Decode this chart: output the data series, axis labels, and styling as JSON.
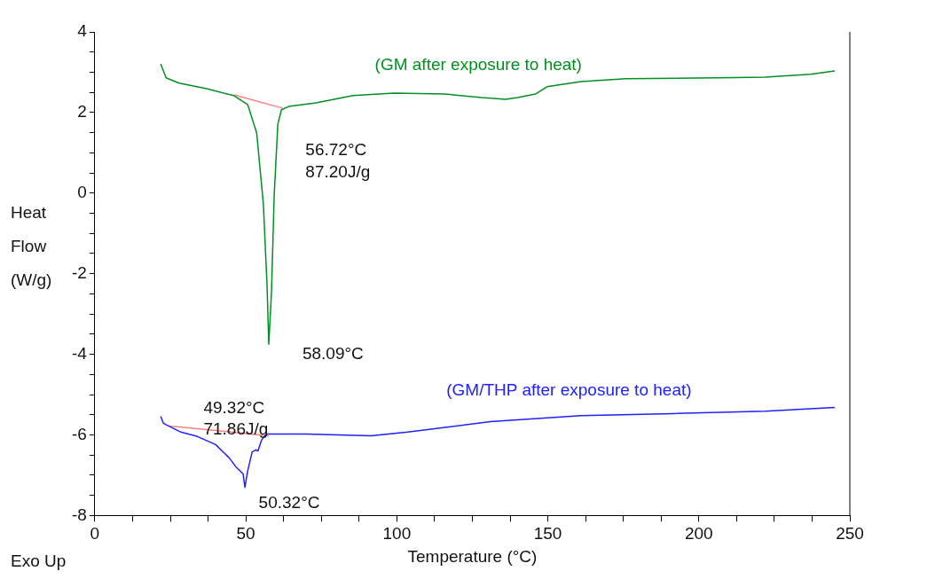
{
  "chart_data": {
    "type": "line",
    "xlabel": "Temperature (°C)",
    "ylabel": "Heat\nFlow\n(W/g)",
    "marker": "none",
    "xlim": [
      0,
      250
    ],
    "ylim": [
      -8,
      4
    ],
    "xticks": [
      0,
      {
        "value": 12.5,
        "label": null
      },
      {
        "value": 25,
        "label": null
      },
      {
        "value": 37.5,
        "label": null
      },
      50,
      {
        "value": 62.5,
        "label": null
      },
      {
        "value": 75,
        "label": null
      },
      {
        "value": 87.5,
        "label": null
      },
      100,
      {
        "value": 112.5,
        "label": null
      },
      {
        "value": 125,
        "label": null
      },
      {
        "value": 137.5,
        "label": null
      },
      150,
      {
        "value": 162.5,
        "label": null
      },
      {
        "value": 175,
        "label": null
      },
      {
        "value": 187.5,
        "label": null
      },
      200,
      {
        "value": 212.5,
        "label": null
      },
      {
        "value": 225,
        "label": null
      },
      {
        "value": 237.5,
        "label": null
      },
      250
    ],
    "yticks": [
      -8,
      {
        "value": -7.5,
        "label": null
      },
      {
        "value": -7,
        "label": null
      },
      {
        "value": -6.5,
        "label": null
      },
      -6,
      {
        "value": -5.5,
        "label": null
      },
      {
        "value": -5,
        "label": null
      },
      {
        "value": -4.5,
        "label": null
      },
      -4,
      {
        "value": -3.5,
        "label": null
      },
      {
        "value": -3,
        "label": null
      },
      {
        "value": -2.5,
        "label": null
      },
      -2,
      {
        "value": -1.5,
        "label": null
      },
      {
        "value": -1,
        "label": null
      },
      {
        "value": -0.5,
        "label": null
      },
      0,
      {
        "value": 0.5,
        "label": null
      },
      {
        "value": 1,
        "label": null
      },
      {
        "value": 1.5,
        "label": null
      },
      2,
      {
        "value": 2.5,
        "label": null
      },
      {
        "value": 3,
        "label": null
      },
      {
        "value": 3.5,
        "label": null
      },
      4
    ],
    "series": [
      {
        "name": "(GM after exposure to heat)",
        "color": "#009020",
        "x": [
          21.8,
          23.6,
          27.9,
          37,
          46,
          50.6,
          53.6,
          55.8,
          57,
          57.6,
          58.5,
          59.4,
          60.6,
          61.8,
          64.2,
          73.3,
          85.5,
          99,
          115.8,
          128,
          136,
          140,
          146,
          149.7,
          161,
          176,
          206.7,
          222,
          237,
          245
        ],
        "values": [
          3.21,
          2.86,
          2.73,
          2.59,
          2.42,
          2.2,
          1.49,
          -0.26,
          -2.24,
          -3.75,
          -2.46,
          -0.04,
          1.71,
          2.07,
          2.15,
          2.24,
          2.42,
          2.48,
          2.46,
          2.37,
          2.33,
          2.37,
          2.46,
          2.64,
          2.77,
          2.84,
          2.86,
          2.88,
          2.95,
          3.03
        ]
      },
      {
        "name": "(GM/THP after exposure to heat)",
        "color": "#2020ff",
        "x": [
          21.8,
          22.7,
          28.5,
          34,
          40,
          44.5,
          46.7,
          49.1,
          49.7,
          50.6,
          52.1,
          53.3,
          54,
          55.2,
          56.7,
          61.2,
          70,
          91.5,
          103.6,
          131,
          161,
          191.5,
          222,
          245
        ],
        "values": [
          -5.54,
          -5.71,
          -5.93,
          -6.04,
          -6.24,
          -6.57,
          -6.79,
          -6.97,
          -7.3,
          -6.9,
          -6.42,
          -6.37,
          -6.4,
          -6.13,
          -5.98,
          -5.98,
          -5.98,
          -6.02,
          -5.93,
          -5.67,
          -5.52,
          -5.47,
          -5.41,
          -5.32
        ]
      },
      {
        "color": "#ff8080",
        "x": [
          46.1,
          62.1
        ],
        "values": [
          2.44,
          2.11
        ]
      },
      {
        "color": "#ff8080",
        "x": [
          24.8,
          57.6
        ],
        "values": [
          -5.78,
          -6.02
        ]
      }
    ],
    "annotations": [
      "56.72°C",
      "87.20J/g",
      "58.09°C",
      "49.32°C",
      "71.86J/g",
      "50.32°C",
      "Exo Up"
    ]
  }
}
